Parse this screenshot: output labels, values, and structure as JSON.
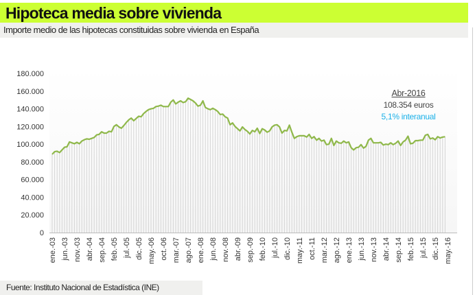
{
  "header": {
    "title": "Hipoteca media sobre vivienda",
    "subtitle": "Importe medio de las hipotecas constituidas sobre vivienda en España"
  },
  "footer": {
    "source": "Fuente: Instituto Nacional de Estadística (INE)"
  },
  "colors": {
    "title_bar": "#ccff33",
    "line": "#8fb84a",
    "bars": "#d4d4d4",
    "highlight": "#1ab0e8"
  },
  "annotation": {
    "date": "Abr-2016",
    "value": "108.354 euros",
    "change": "5,1% interanual"
  },
  "chart_data": {
    "type": "line",
    "title": "",
    "xlabel": "",
    "ylabel": "",
    "ylim": [
      0,
      180000
    ],
    "yticks": [
      0,
      20000,
      40000,
      60000,
      80000,
      100000,
      120000,
      140000,
      160000,
      180000
    ],
    "ytick_labels": [
      "0",
      "20.000",
      "40.000",
      "60.000",
      "80.000",
      "100.000",
      "120.000",
      "140.000",
      "160.000",
      "180.000"
    ],
    "grid": false,
    "x_start": "ene.-03",
    "x_end": "abr.-16",
    "xtick_labels": [
      "ene.-03",
      "jun.-03",
      "nov.-03",
      "abr.-04",
      "sep.-04",
      "feb.-05",
      "jul.-05",
      "dic.-05",
      "may.-06",
      "oct.-06",
      "mar.-07",
      "ago.-07",
      "ene.-08",
      "jun.-08",
      "nov.-08",
      "abr.-09",
      "sep.-09",
      "feb.-10",
      "jul.-10",
      "dic.-10",
      "may.-11",
      "oct.-11",
      "mar.-12",
      "ago.-12",
      "ene.-13",
      "jun.-13",
      "nov.-13",
      "abr.-14",
      "sep.-14",
      "feb.-15",
      "jul.-15",
      "dic.-15",
      "may.-16"
    ],
    "xtick_every_months": 5,
    "secondary_marks": "monthly vertical bars under the line",
    "values": [
      88500,
      91500,
      92000,
      90500,
      93500,
      96500,
      97000,
      102500,
      101500,
      100500,
      102000,
      100500,
      103500,
      105000,
      106000,
      105500,
      106500,
      107500,
      110500,
      111000,
      114000,
      112500,
      112500,
      114500,
      114000,
      120000,
      122000,
      119500,
      118000,
      121000,
      124500,
      127500,
      129500,
      126500,
      129000,
      131500,
      131000,
      134500,
      137000,
      139000,
      140000,
      140500,
      142500,
      143000,
      144000,
      142500,
      142500,
      142500,
      147500,
      150000,
      145500,
      147500,
      149000,
      147000,
      148000,
      152000,
      150500,
      149000,
      146500,
      143000,
      144000,
      149000,
      141500,
      140000,
      139000,
      140500,
      139000,
      137000,
      133500,
      134000,
      131000,
      129500,
      122000,
      124000,
      120000,
      117500,
      115000,
      119500,
      116500,
      114500,
      111500,
      115500,
      114000,
      118000,
      112000,
      117500,
      116000,
      113500,
      115000,
      119500,
      121500,
      122000,
      119500,
      112500,
      115500,
      115000,
      121500,
      113500,
      106500,
      108500,
      109500,
      109500,
      109500,
      108000,
      111000,
      106500,
      108500,
      104500,
      106500,
      103500,
      104500,
      99500,
      100000,
      106500,
      98500,
      103500,
      101500,
      101000,
      103500,
      101500,
      102500,
      96000,
      93500,
      96000,
      96500,
      99500,
      95500,
      97500,
      104500,
      106500,
      101500,
      101500,
      101500,
      102000,
      99000,
      100000,
      99500,
      101500,
      99500,
      101000,
      103500,
      98500,
      102500,
      104500,
      109000,
      100500,
      101000,
      104000,
      104000,
      104500,
      104500,
      110000,
      111000,
      106000,
      107000,
      105000,
      108500,
      107000,
      108000,
      108354
    ]
  }
}
